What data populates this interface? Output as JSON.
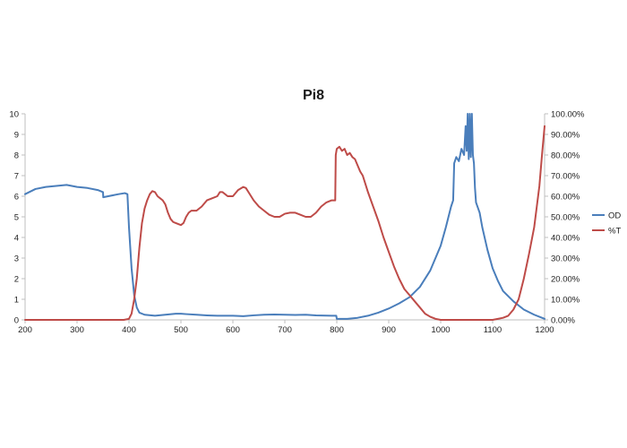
{
  "chart_data": {
    "type": "line",
    "title": "Pi8",
    "xlabel": "",
    "ylabel": "",
    "y2label": "",
    "xlim": [
      200,
      1200
    ],
    "ylim": [
      0,
      10
    ],
    "y2lim": [
      0,
      1
    ],
    "x_ticks": [
      "200",
      "300",
      "400",
      "500",
      "600",
      "700",
      "800",
      "900",
      "1000",
      "1100",
      "1200"
    ],
    "y_ticks": [
      "0",
      "1",
      "2",
      "3",
      "4",
      "5",
      "6",
      "7",
      "8",
      "9",
      "10"
    ],
    "y2_ticks": [
      "0.00%",
      "10.00%",
      "20.00%",
      "30.00%",
      "40.00%",
      "50.00%",
      "60.00%",
      "70.00%",
      "80.00%",
      "90.00%",
      "100.00%"
    ],
    "grid": false,
    "legend_position": "right",
    "series": [
      {
        "name": "OD",
        "axis": "left",
        "color": "#4a7ebb",
        "points": [
          [
            200,
            6.1
          ],
          [
            220,
            6.35
          ],
          [
            240,
            6.45
          ],
          [
            260,
            6.5
          ],
          [
            280,
            6.55
          ],
          [
            300,
            6.45
          ],
          [
            320,
            6.4
          ],
          [
            340,
            6.3
          ],
          [
            350,
            6.2
          ],
          [
            350.5,
            5.95
          ],
          [
            360,
            6.0
          ],
          [
            380,
            6.1
          ],
          [
            392,
            6.15
          ],
          [
            397,
            6.1
          ],
          [
            400,
            4.5
          ],
          [
            405,
            2.5
          ],
          [
            410,
            1.2
          ],
          [
            415,
            0.6
          ],
          [
            420,
            0.35
          ],
          [
            430,
            0.25
          ],
          [
            450,
            0.2
          ],
          [
            470,
            0.25
          ],
          [
            490,
            0.3
          ],
          [
            500,
            0.3
          ],
          [
            510,
            0.28
          ],
          [
            530,
            0.25
          ],
          [
            550,
            0.22
          ],
          [
            570,
            0.2
          ],
          [
            590,
            0.2
          ],
          [
            600,
            0.2
          ],
          [
            620,
            0.18
          ],
          [
            640,
            0.22
          ],
          [
            660,
            0.25
          ],
          [
            680,
            0.26
          ],
          [
            700,
            0.25
          ],
          [
            720,
            0.24
          ],
          [
            740,
            0.25
          ],
          [
            760,
            0.22
          ],
          [
            790,
            0.2
          ],
          [
            799,
            0.2
          ],
          [
            800,
            0.05
          ],
          [
            820,
            0.05
          ],
          [
            840,
            0.1
          ],
          [
            860,
            0.2
          ],
          [
            880,
            0.35
          ],
          [
            900,
            0.55
          ],
          [
            920,
            0.8
          ],
          [
            940,
            1.1
          ],
          [
            960,
            1.6
          ],
          [
            980,
            2.4
          ],
          [
            1000,
            3.6
          ],
          [
            1010,
            4.5
          ],
          [
            1020,
            5.5
          ],
          [
            1024,
            5.8
          ],
          [
            1026,
            7.6
          ],
          [
            1030,
            7.9
          ],
          [
            1035,
            7.7
          ],
          [
            1040,
            8.3
          ],
          [
            1045,
            8.0
          ],
          [
            1048,
            9.4
          ],
          [
            1050,
            8.2
          ],
          [
            1052,
            10
          ],
          [
            1054,
            7.8
          ],
          [
            1056,
            10
          ],
          [
            1058,
            7.9
          ],
          [
            1060,
            10
          ],
          [
            1062,
            8.0
          ],
          [
            1064,
            7.6
          ],
          [
            1066,
            6.4
          ],
          [
            1068,
            5.7
          ],
          [
            1075,
            5.2
          ],
          [
            1080,
            4.5
          ],
          [
            1090,
            3.4
          ],
          [
            1100,
            2.5
          ],
          [
            1110,
            1.9
          ],
          [
            1120,
            1.4
          ],
          [
            1140,
            0.9
          ],
          [
            1160,
            0.5
          ],
          [
            1180,
            0.25
          ],
          [
            1195,
            0.1
          ],
          [
            1200,
            0.05
          ]
        ]
      },
      {
        "name": "%T",
        "axis": "right",
        "color": "#be4b48",
        "points": [
          [
            200,
            0
          ],
          [
            390,
            0
          ],
          [
            400,
            0.005
          ],
          [
            405,
            0.03
          ],
          [
            410,
            0.1
          ],
          [
            415,
            0.2
          ],
          [
            420,
            0.35
          ],
          [
            425,
            0.47
          ],
          [
            430,
            0.54
          ],
          [
            435,
            0.58
          ],
          [
            440,
            0.61
          ],
          [
            445,
            0.625
          ],
          [
            450,
            0.62
          ],
          [
            455,
            0.6
          ],
          [
            460,
            0.59
          ],
          [
            465,
            0.58
          ],
          [
            470,
            0.56
          ],
          [
            475,
            0.52
          ],
          [
            480,
            0.49
          ],
          [
            485,
            0.475
          ],
          [
            490,
            0.47
          ],
          [
            495,
            0.465
          ],
          [
            500,
            0.46
          ],
          [
            505,
            0.47
          ],
          [
            510,
            0.5
          ],
          [
            515,
            0.52
          ],
          [
            520,
            0.53
          ],
          [
            530,
            0.53
          ],
          [
            540,
            0.55
          ],
          [
            550,
            0.58
          ],
          [
            560,
            0.59
          ],
          [
            570,
            0.6
          ],
          [
            575,
            0.62
          ],
          [
            580,
            0.62
          ],
          [
            585,
            0.61
          ],
          [
            590,
            0.6
          ],
          [
            600,
            0.6
          ],
          [
            610,
            0.63
          ],
          [
            620,
            0.645
          ],
          [
            625,
            0.64
          ],
          [
            630,
            0.62
          ],
          [
            640,
            0.58
          ],
          [
            650,
            0.55
          ],
          [
            660,
            0.53
          ],
          [
            670,
            0.51
          ],
          [
            680,
            0.5
          ],
          [
            690,
            0.5
          ],
          [
            700,
            0.515
          ],
          [
            710,
            0.52
          ],
          [
            720,
            0.52
          ],
          [
            730,
            0.51
          ],
          [
            740,
            0.5
          ],
          [
            750,
            0.5
          ],
          [
            760,
            0.52
          ],
          [
            770,
            0.55
          ],
          [
            780,
            0.57
          ],
          [
            790,
            0.58
          ],
          [
            797,
            0.58
          ],
          [
            798,
            0.8
          ],
          [
            800,
            0.83
          ],
          [
            805,
            0.84
          ],
          [
            810,
            0.82
          ],
          [
            815,
            0.83
          ],
          [
            820,
            0.8
          ],
          [
            825,
            0.81
          ],
          [
            830,
            0.79
          ],
          [
            835,
            0.78
          ],
          [
            840,
            0.75
          ],
          [
            845,
            0.72
          ],
          [
            850,
            0.7
          ],
          [
            855,
            0.66
          ],
          [
            860,
            0.62
          ],
          [
            870,
            0.55
          ],
          [
            880,
            0.48
          ],
          [
            890,
            0.4
          ],
          [
            900,
            0.33
          ],
          [
            910,
            0.26
          ],
          [
            920,
            0.2
          ],
          [
            930,
            0.15
          ],
          [
            940,
            0.12
          ],
          [
            950,
            0.09
          ],
          [
            960,
            0.06
          ],
          [
            970,
            0.03
          ],
          [
            980,
            0.015
          ],
          [
            990,
            0.005
          ],
          [
            1000,
            0
          ],
          [
            1100,
            0
          ],
          [
            1110,
            0.005
          ],
          [
            1120,
            0.01
          ],
          [
            1130,
            0.02
          ],
          [
            1140,
            0.05
          ],
          [
            1150,
            0.1
          ],
          [
            1160,
            0.2
          ],
          [
            1170,
            0.32
          ],
          [
            1180,
            0.45
          ],
          [
            1185,
            0.55
          ],
          [
            1190,
            0.65
          ],
          [
            1195,
            0.8
          ],
          [
            1200,
            0.94
          ]
        ]
      }
    ]
  }
}
